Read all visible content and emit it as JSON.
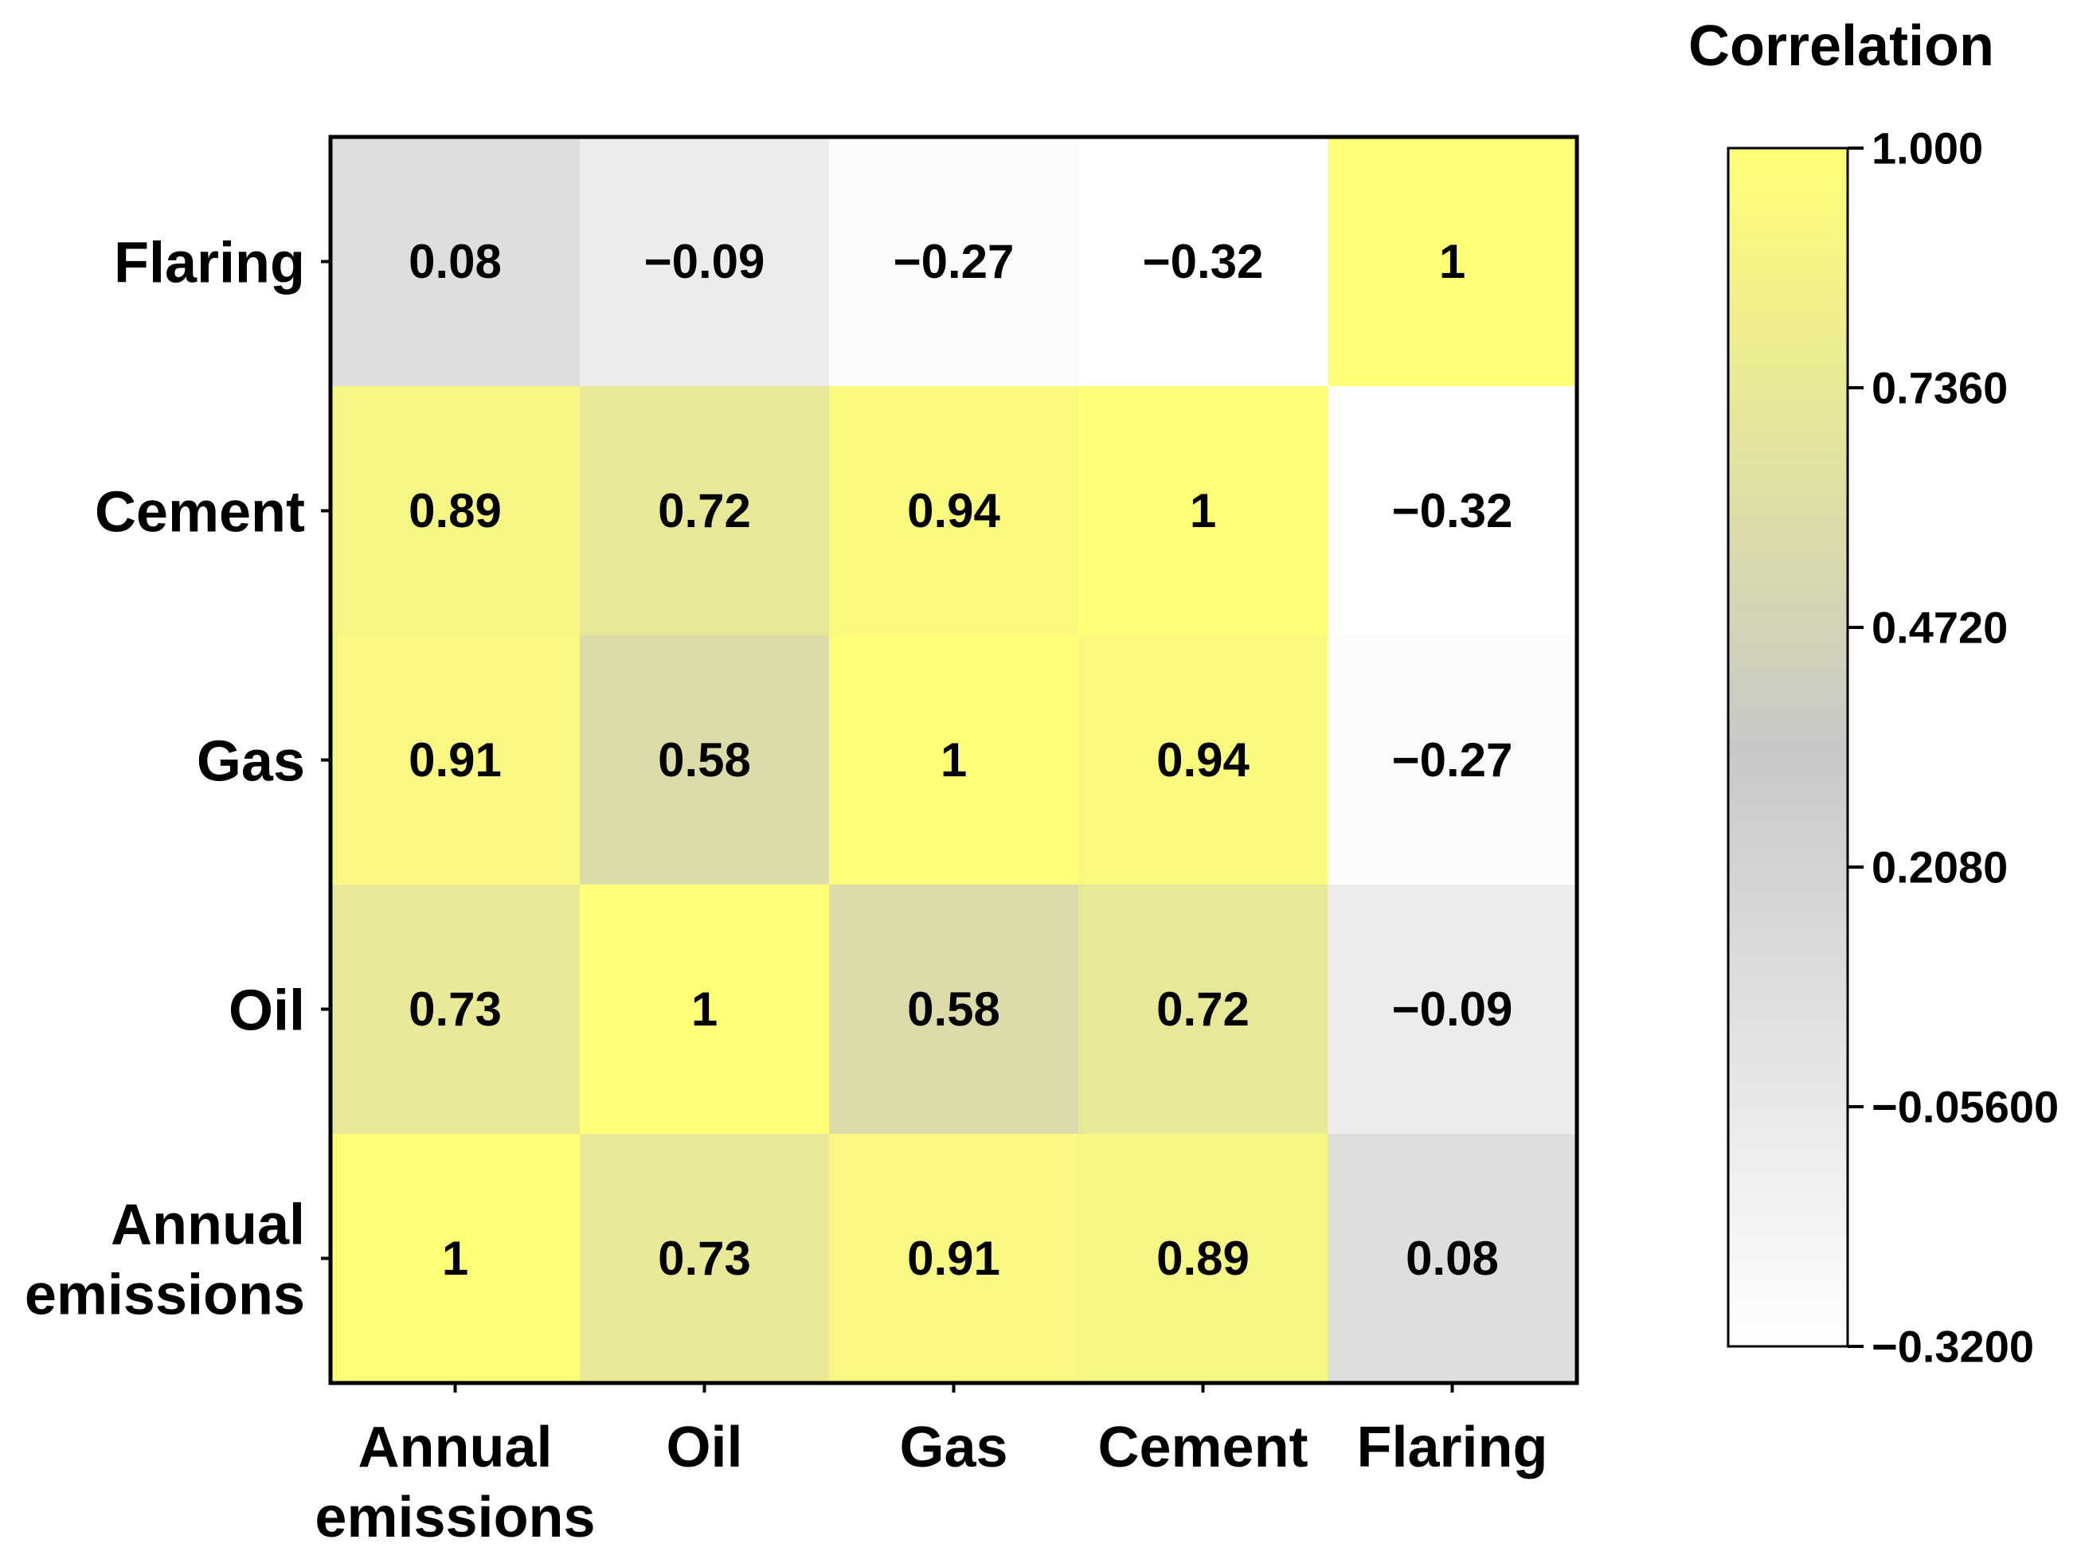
{
  "chart_data": {
    "type": "heatmap",
    "title": "",
    "xlabel": "",
    "ylabel": "",
    "x_categories": [
      [
        "Annual",
        "emissions"
      ],
      [
        "Oil"
      ],
      [
        "Gas"
      ],
      [
        "Cement"
      ],
      [
        "Flaring"
      ]
    ],
    "y_categories_top_to_bottom": [
      [
        "Flaring"
      ],
      [
        "Cement"
      ],
      [
        "Gas"
      ],
      [
        "Oil"
      ],
      [
        "Annual",
        "emissions"
      ]
    ],
    "matrix_top_to_bottom": [
      [
        "0.08",
        "−0.09",
        "−0.27",
        "−0.32",
        "1"
      ],
      [
        "0.89",
        "0.72",
        "0.94",
        "1",
        "−0.32"
      ],
      [
        "0.91",
        "0.58",
        "1",
        "0.94",
        "−0.27"
      ],
      [
        "0.73",
        "1",
        "0.58",
        "0.72",
        "−0.09"
      ],
      [
        "1",
        "0.73",
        "0.91",
        "0.89",
        "0.08"
      ]
    ],
    "colorbar": {
      "title": "Correlation",
      "range": [
        -0.32,
        1.0
      ],
      "ticks": [
        1.0,
        0.736,
        0.472,
        0.208,
        -0.056,
        -0.32
      ],
      "tick_labels": [
        "1.000",
        "0.7360",
        "0.4720",
        "0.2080",
        "−0.05600",
        "−0.3200"
      ],
      "colormap": [
        "#ffffff",
        "#c8c8c8",
        "#ffff77"
      ]
    }
  }
}
